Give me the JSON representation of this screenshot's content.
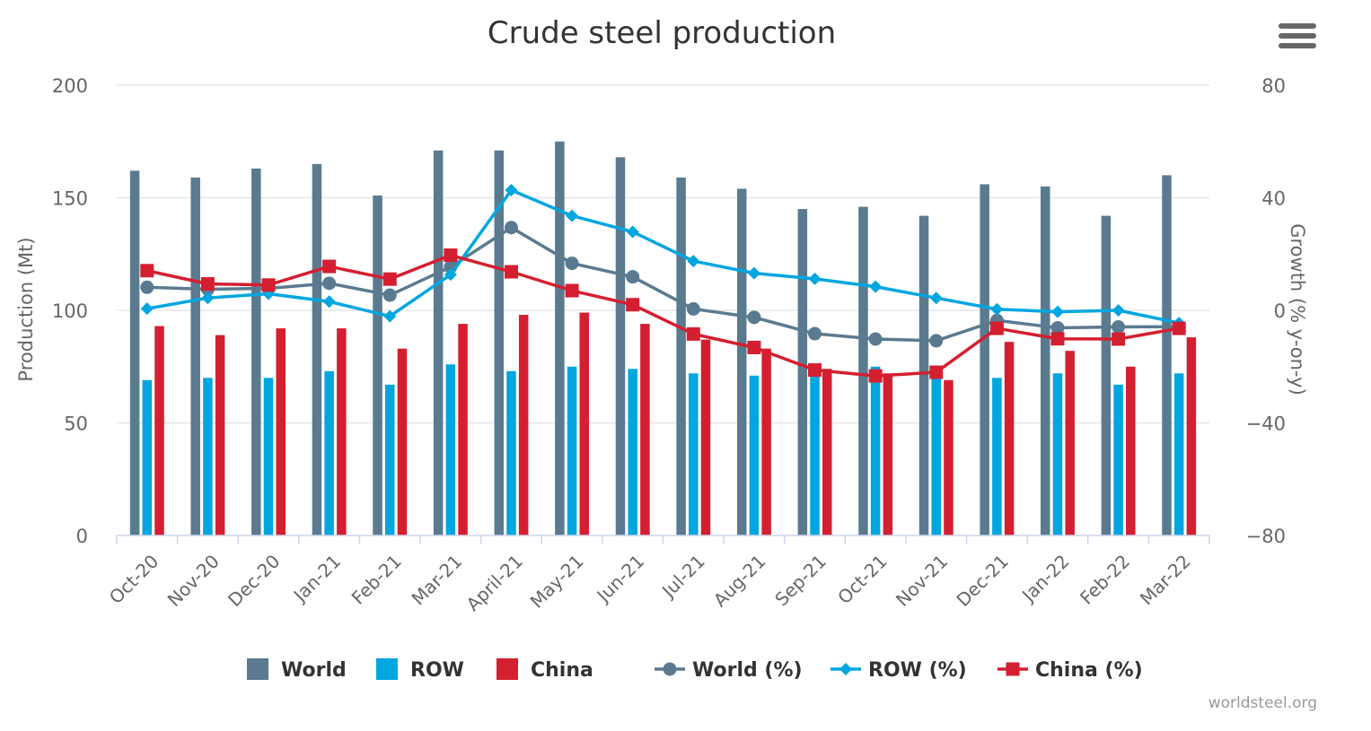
{
  "chart_data": {
    "type": "bar",
    "title": "Crude steel production",
    "ylabel": "Production (Mt)",
    "ylabel_right": "Growth (% y-on-y)",
    "ylim": [
      0,
      200
    ],
    "ylim_right": [
      -80,
      80
    ],
    "yticks": [
      "0",
      "50",
      "100",
      "150",
      "200"
    ],
    "yticks_right": [
      "−80",
      "−40",
      "0",
      "40",
      "80"
    ],
    "grid": true,
    "legend_position": "bottom",
    "categories": [
      "Oct-20",
      "Nov-20",
      "Dec-20",
      "Jan-21",
      "Feb-21",
      "Mar-21",
      "April-21",
      "May-21",
      "Jun-21",
      "Jul-21",
      "Aug-21",
      "Sep-21",
      "Oct-21",
      "Nov-21",
      "Dec-21",
      "Jan-22",
      "Feb-22",
      "Mar-22"
    ],
    "series": [
      {
        "name": "World",
        "type": "bar",
        "axis": "left",
        "color": "#5a7a8f",
        "values": [
          162,
          159,
          163,
          165,
          151,
          171,
          171,
          175,
          168,
          159,
          154,
          145,
          146,
          142,
          156,
          155,
          142,
          160
        ]
      },
      {
        "name": "ROW",
        "type": "bar",
        "axis": "left",
        "color": "#00a6e0",
        "values": [
          69,
          70,
          70,
          73,
          67,
          76,
          73,
          75,
          74,
          72,
          71,
          71,
          75,
          70,
          70,
          72,
          67,
          72
        ]
      },
      {
        "name": "China",
        "type": "bar",
        "axis": "left",
        "color": "#d41f30",
        "values": [
          93,
          89,
          92,
          92,
          83,
          94,
          98,
          99,
          94,
          87,
          83,
          74,
          72,
          69,
          86,
          82,
          75,
          88
        ]
      },
      {
        "name": "World (%)",
        "type": "line",
        "marker": "circle",
        "axis": "right",
        "color": "#5a7a8f",
        "values": [
          8.2,
          7.5,
          7.8,
          9.6,
          5.4,
          15.4,
          29.4,
          16.7,
          11.9,
          0.5,
          -2.5,
          -8.3,
          -10.2,
          -10.8,
          -3.6,
          -6.2,
          -5.9,
          -5.8
        ]
      },
      {
        "name": "ROW (%)",
        "type": "line",
        "marker": "diamond",
        "axis": "right",
        "color": "#00a6e0",
        "values": [
          0.6,
          4.4,
          5.9,
          3.1,
          -2.1,
          12.7,
          42.7,
          33.6,
          27.9,
          17.5,
          13.2,
          11.2,
          8.4,
          4.4,
          0.4,
          -0.5,
          0.0,
          -4.5
        ]
      },
      {
        "name": "China (%)",
        "type": "line",
        "marker": "square",
        "axis": "right",
        "color": "#d41f30",
        "values": [
          14.1,
          9.4,
          9.0,
          15.6,
          11.1,
          19.6,
          13.7,
          7.0,
          2.0,
          -8.4,
          -13.2,
          -21.2,
          -23.3,
          -22.0,
          -6.4,
          -10.1,
          -10.2,
          -6.4
        ]
      }
    ],
    "credit": "worldsteel.org"
  },
  "ui": {
    "menu_icon": "hamburger-menu-icon"
  }
}
